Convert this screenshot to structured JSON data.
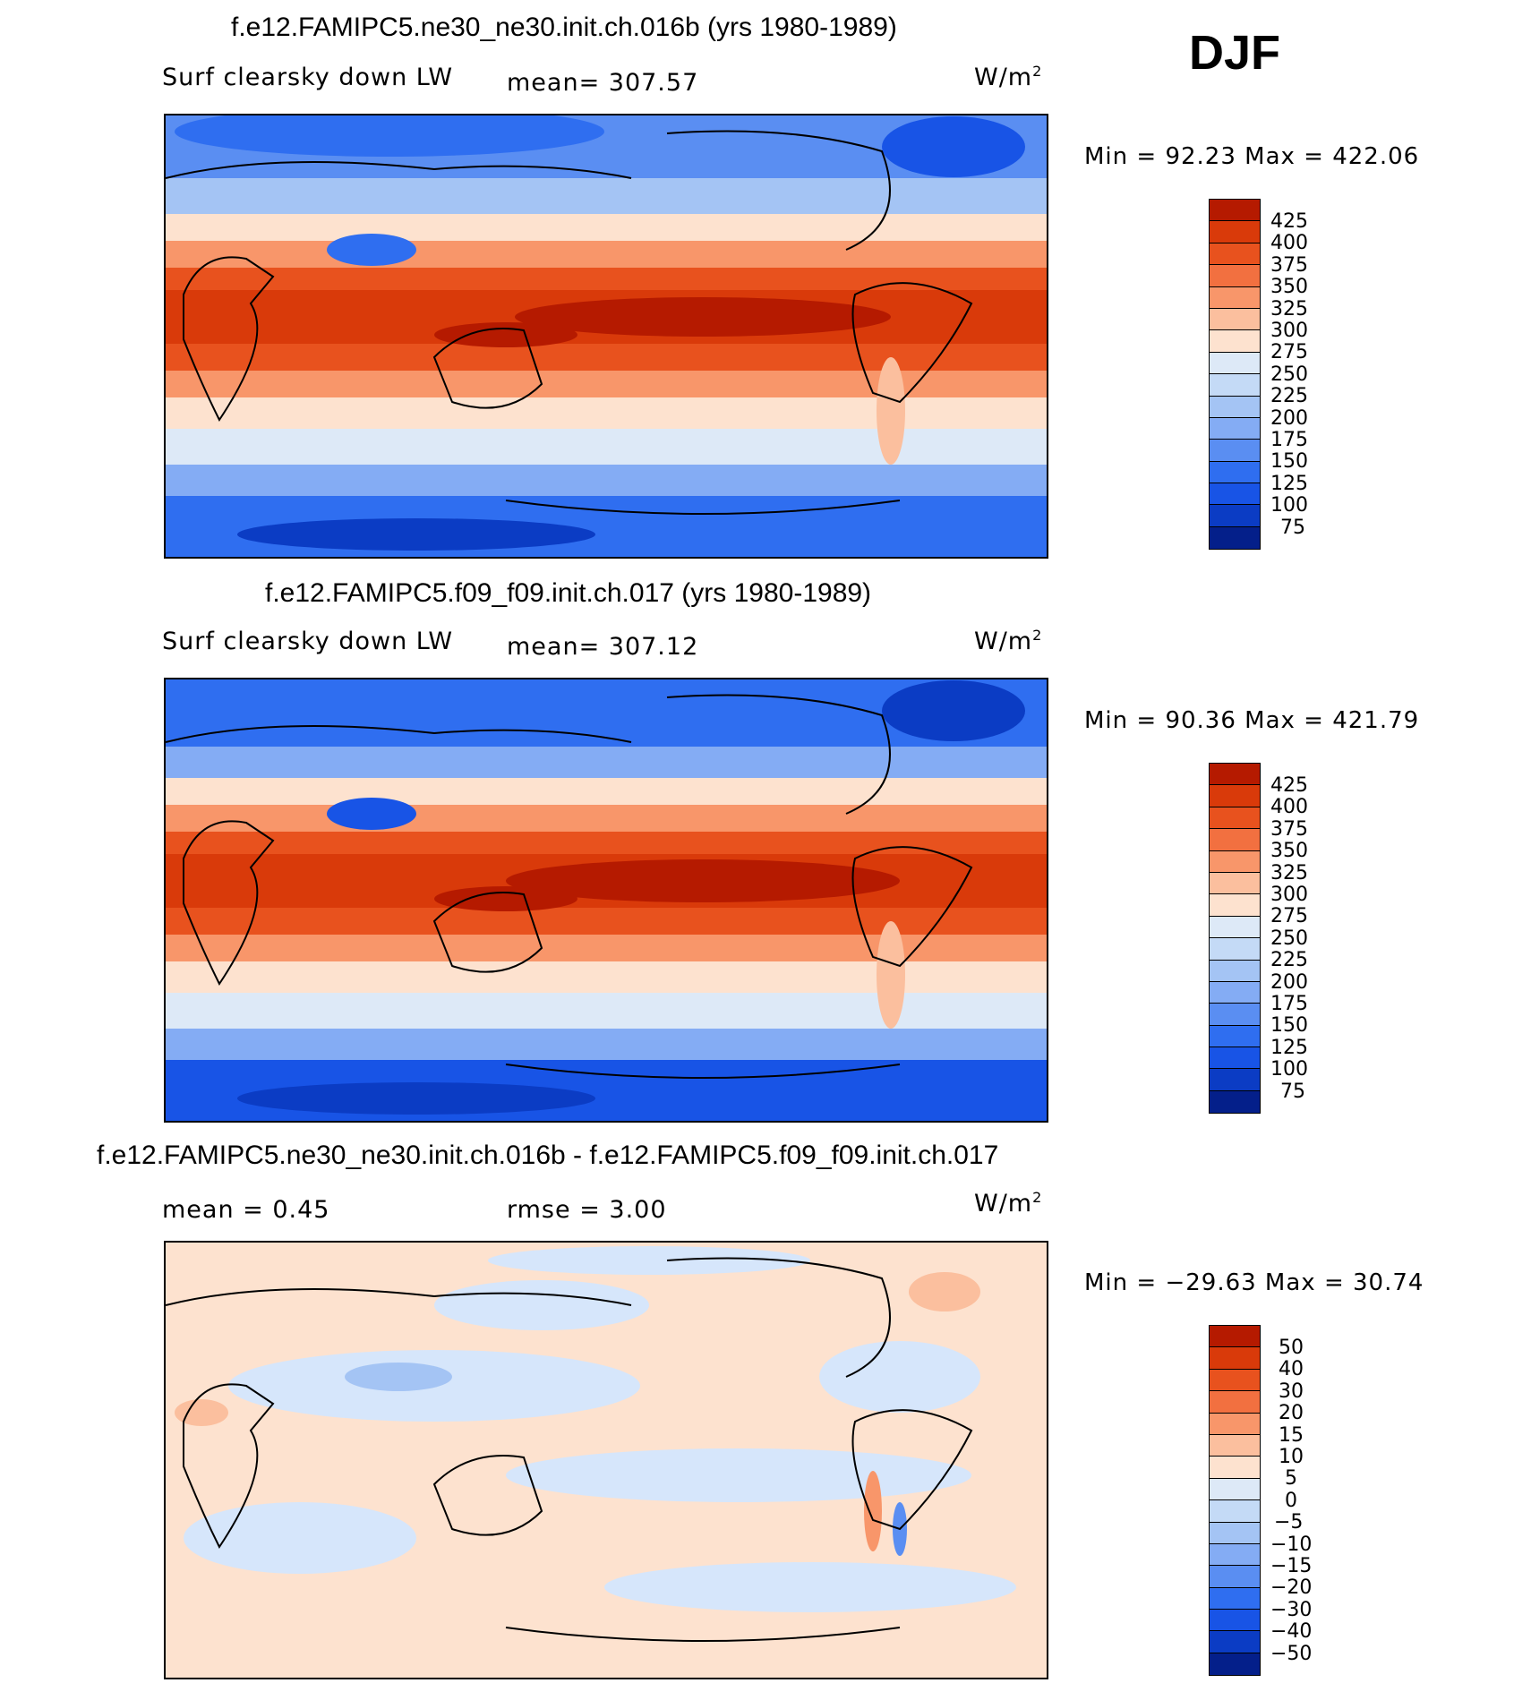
{
  "season_label": "DJF",
  "panels": [
    {
      "title": "f.e12.FAMIPC5.ne30_ne30.init.ch.016b (yrs 1980-1989)",
      "variable": "Surf clearsky down LW",
      "stat_text": "mean= 307.57",
      "units": "W/m",
      "units_exp": "2",
      "minmax": "Min =   92.23 Max = 422.06",
      "colorbar": {
        "colors": [
          "#850000",
          "#b51a00",
          "#d93a0a",
          "#e8521e",
          "#f27040",
          "#f8966a",
          "#fbbf9e",
          "#fde2cf",
          "#dde9f7",
          "#c4daf6",
          "#a4c4f4",
          "#84acf4",
          "#5a8ef2",
          "#2f6ef0",
          "#1854e6",
          "#0b3cc4",
          "#041f8a"
        ],
        "ticks": [
          "425",
          "400",
          "375",
          "350",
          "325",
          "300",
          "275",
          "250",
          "225",
          "200",
          "175",
          "150",
          "125",
          "100",
          "75"
        ]
      }
    },
    {
      "title": "f.e12.FAMIPC5.f09_f09.init.ch.017 (yrs 1980-1989)",
      "variable": "Surf clearsky down LW",
      "stat_text": "mean= 307.12",
      "units": "W/m",
      "units_exp": "2",
      "minmax": "Min =   90.36 Max = 421.79",
      "colorbar": {
        "colors": [
          "#850000",
          "#b51a00",
          "#d93a0a",
          "#e8521e",
          "#f27040",
          "#f8966a",
          "#fbbf9e",
          "#fde2cf",
          "#dde9f7",
          "#c4daf6",
          "#a4c4f4",
          "#84acf4",
          "#5a8ef2",
          "#2f6ef0",
          "#1854e6",
          "#0b3cc4",
          "#041f8a"
        ],
        "ticks": [
          "425",
          "400",
          "375",
          "350",
          "325",
          "300",
          "275",
          "250",
          "225",
          "200",
          "175",
          "150",
          "125",
          "100",
          "75"
        ]
      }
    },
    {
      "title": "f.e12.FAMIPC5.ne30_ne30.init.ch.016b - f.e12.FAMIPC5.f09_f09.init.ch.017",
      "mean_text": "mean =    0.45",
      "rmse_text": "rmse =    3.00",
      "units": "W/m",
      "units_exp": "2",
      "minmax": "Min = −29.63 Max =   30.74",
      "colorbar": {
        "colors": [
          "#850000",
          "#b51a00",
          "#d93a0a",
          "#e8521e",
          "#f27040",
          "#f8966a",
          "#fbbf9e",
          "#fde2cf",
          "#dde9f7",
          "#c4daf6",
          "#a4c4f4",
          "#84acf4",
          "#5a8ef2",
          "#2f6ef0",
          "#1854e6",
          "#0b3cc4",
          "#041f8a"
        ],
        "ticks": [
          "50",
          "40",
          "30",
          "20",
          "15",
          "10",
          "5",
          "0",
          "−5",
          "−10",
          "−15",
          "−20",
          "−30",
          "−40",
          "−50"
        ]
      }
    }
  ],
  "colors": {
    "deep_red": "#b51a00",
    "red": "#e8521e",
    "orange": "#f8966a",
    "peach": "#fde2cf",
    "pale_blue": "#dde9f7",
    "light_blue": "#a4c4f4",
    "blue": "#2f6ef0",
    "navy": "#0b3cc4",
    "diff_pos": "#fde2cf",
    "diff_neg": "#d6e6fb"
  }
}
